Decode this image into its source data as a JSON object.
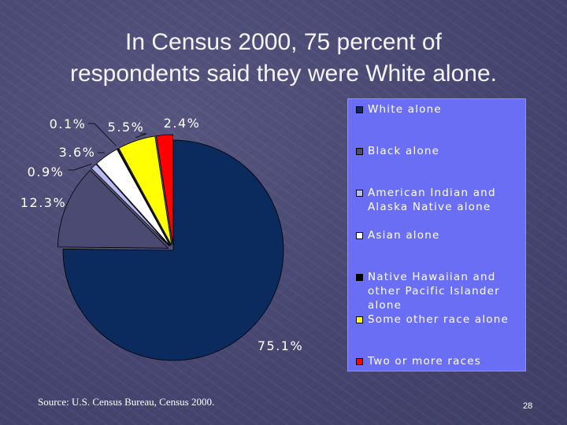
{
  "slide": {
    "title_line1": "In Census 2000, 75 percent of",
    "title_line2": "respondents said they were White alone.",
    "source": "Source: U.S. Census Bureau, Census 2000.",
    "page_number": "28"
  },
  "chart_data": {
    "type": "pie",
    "title": "",
    "categories": [
      "White alone",
      "Black alone",
      "American Indian and Alaska Native alone",
      "Asian alone",
      "Native Hawaiian and other Pacific Islander alone",
      "Some other race alone",
      "Two or more races"
    ],
    "legend_labels": [
      "White alone",
      "Black alone",
      "American Indian and\nAlaska Native alone",
      "Asian alone",
      "Native Hawaiian and\nother Pacific Islander\nalone",
      "Some other race alone",
      "Two or more races"
    ],
    "values": [
      75.1,
      12.3,
      0.9,
      3.6,
      0.1,
      5.5,
      2.4
    ],
    "data_labels": [
      "75.1%",
      "12.3%",
      "0.9%",
      "3.6%",
      "0.1%",
      "5.5%",
      "2.4%"
    ],
    "colors": [
      "#0b2a5e",
      "#4b4a73",
      "#b8bbf2",
      "#ffffff",
      "#000000",
      "#ffff00",
      "#ff0000"
    ],
    "start_angle_deg": 0,
    "direction": "clockwise",
    "exploded": true,
    "legend_position": "right",
    "legend_background": "#6a6ef5"
  }
}
